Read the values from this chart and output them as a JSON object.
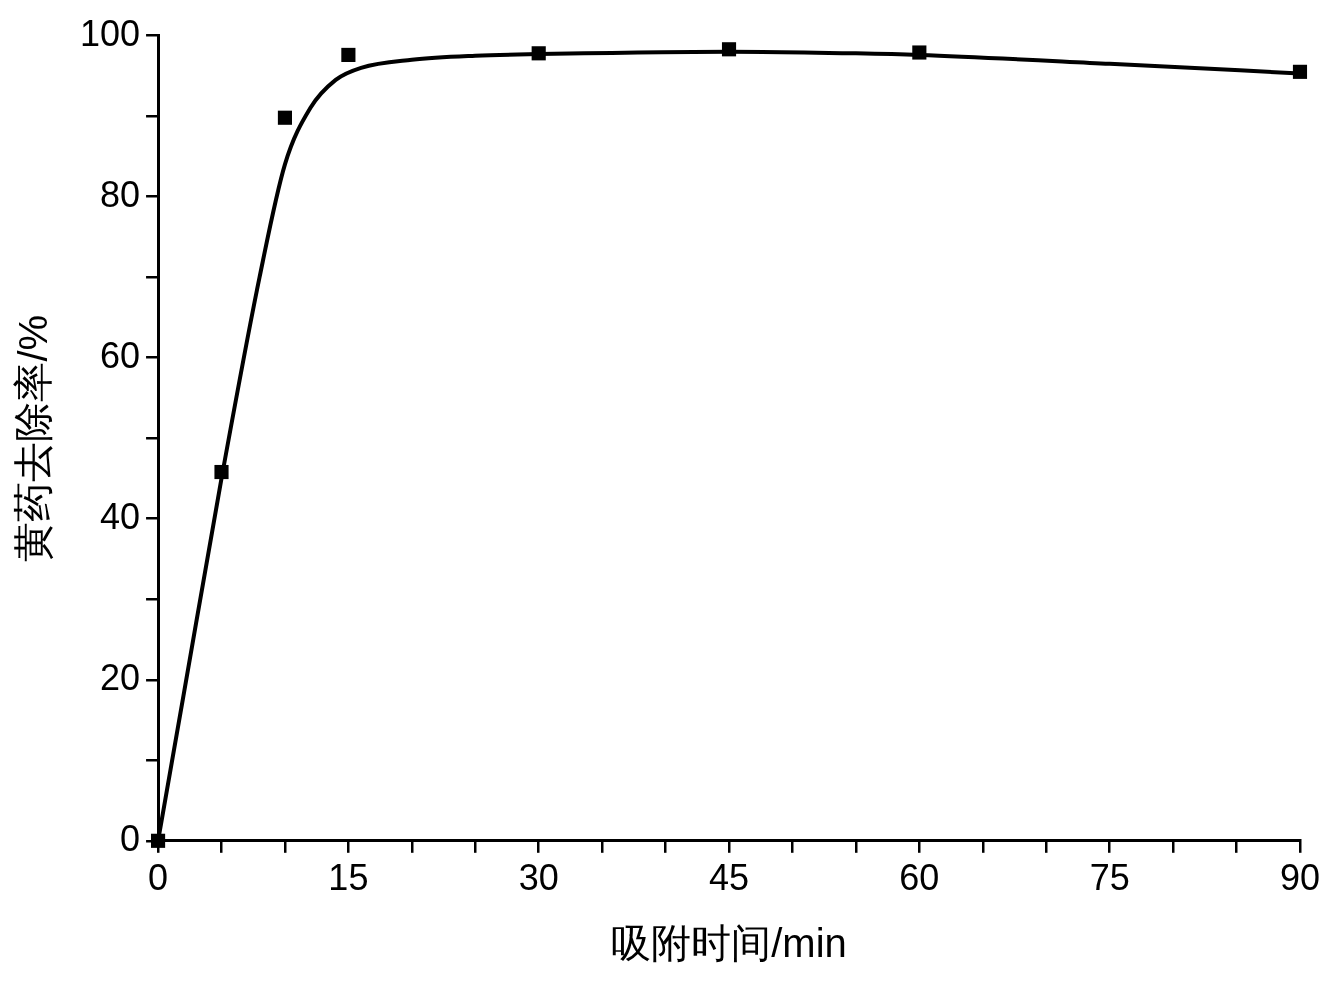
{
  "chart_data": {
    "type": "scatter",
    "xlabel": "吸附时间/min",
    "ylabel": "黄药去除率/%",
    "xlim": [
      0,
      90
    ],
    "ylim": [
      0,
      100
    ],
    "xticks": [
      0,
      {
        "value": 5,
        "label": null
      },
      {
        "value": 10,
        "label": null
      },
      15,
      {
        "value": 20,
        "label": null
      },
      {
        "value": 25,
        "label": null
      },
      30,
      {
        "value": 35,
        "label": null
      },
      {
        "value": 40,
        "label": null
      },
      45,
      {
        "value": 50,
        "label": null
      },
      {
        "value": 55,
        "label": null
      },
      60,
      {
        "value": 65,
        "label": null
      },
      {
        "value": 70,
        "label": null
      },
      75,
      {
        "value": 80,
        "label": null
      },
      {
        "value": 85,
        "label": null
      },
      90
    ],
    "yticks": [
      0,
      {
        "value": 10,
        "label": null
      },
      20,
      {
        "value": 30,
        "label": null
      },
      40,
      {
        "value": 50,
        "label": null
      },
      60,
      {
        "value": 70,
        "label": null
      },
      80,
      {
        "value": 90,
        "label": null
      },
      100
    ],
    "grid": false,
    "legend": false,
    "series": [
      {
        "color": "#000000",
        "marker": "square",
        "x": [
          0,
          5,
          10,
          15,
          30,
          45,
          60,
          90
        ],
        "values": [
          0,
          45.8,
          89.8,
          97.6,
          97.8,
          98.3,
          97.9,
          95.5
        ]
      },
      {
        "type": "line",
        "color": "#000000",
        "marker": "none",
        "line_style": "solid",
        "x": [
          0,
          2,
          5,
          8,
          10,
          12,
          14,
          16,
          20,
          25,
          30,
          45,
          55,
          60,
          75,
          90
        ],
        "values": [
          0,
          18,
          45,
          70,
          84,
          91,
          94.5,
          96,
          97,
          97.5,
          97.7,
          98,
          97.8,
          97.6,
          96.5,
          95.3
        ]
      }
    ]
  }
}
